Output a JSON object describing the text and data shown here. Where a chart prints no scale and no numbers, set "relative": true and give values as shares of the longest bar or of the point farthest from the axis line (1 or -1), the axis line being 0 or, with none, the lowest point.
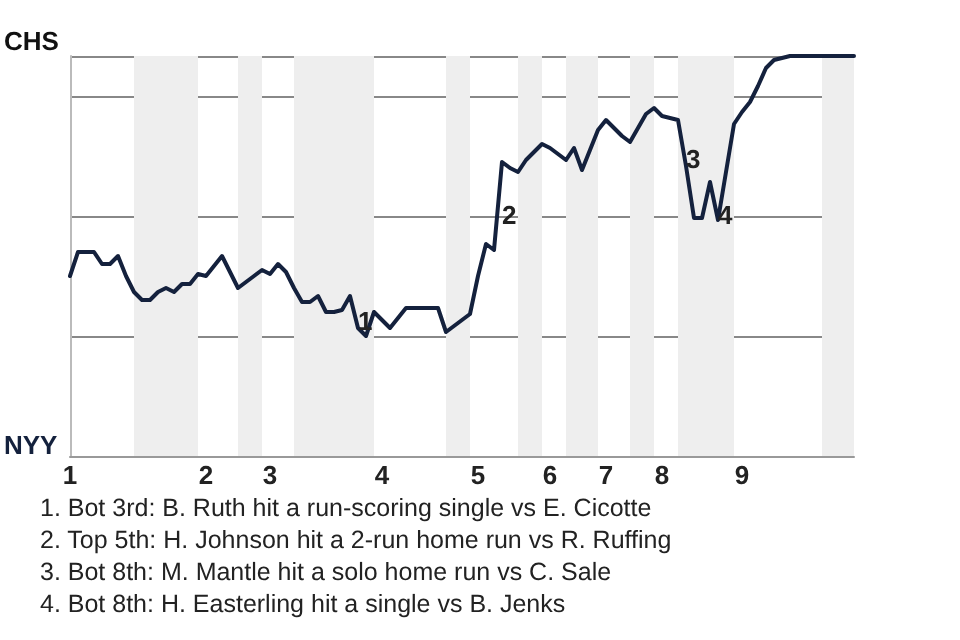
{
  "chart_data": {
    "type": "line",
    "relative": true,
    "categories": [
      "1",
      null,
      null,
      null,
      null,
      null,
      null,
      null,
      null,
      null,
      null,
      null,
      null,
      null,
      null,
      null,
      null,
      "2",
      null,
      null,
      null,
      null,
      null,
      null,
      null,
      "3",
      null,
      null,
      null,
      null,
      null,
      null,
      null,
      null,
      null,
      null,
      null,
      null,
      null,
      "4",
      null,
      null,
      null,
      null,
      null,
      null,
      null,
      null,
      null,
      null,
      null,
      "5",
      null,
      null,
      null,
      null,
      null,
      null,
      null,
      null,
      "6",
      null,
      null,
      null,
      null,
      null,
      null,
      "7",
      null,
      null,
      null,
      null,
      null,
      null,
      "8",
      null,
      null,
      null,
      null,
      null,
      null,
      null,
      null,
      null,
      "9",
      null,
      null,
      null,
      null,
      null,
      null,
      null,
      null,
      null,
      null,
      null,
      null,
      null,
      null
    ],
    "series": [
      {
        "color": "#14213d",
        "values": [
          0.45,
          0.51,
          0.51,
          0.51,
          0.48,
          0.48,
          0.5,
          0.45,
          0.41,
          0.39,
          0.39,
          0.41,
          0.42,
          0.41,
          0.43,
          0.43,
          0.455,
          0.45,
          0.475,
          0.5,
          0.46,
          0.42,
          0.435,
          0.45,
          0.465,
          0.455,
          0.48,
          0.46,
          0.42,
          0.385,
          0.385,
          0.4,
          0.36,
          0.36,
          0.365,
          0.4,
          0.32,
          0.3,
          0.36,
          0.34,
          0.32,
          0.345,
          0.37,
          0.37,
          0.37,
          0.37,
          0.37,
          0.31,
          0.325,
          0.34,
          0.355,
          0.45,
          0.53,
          0.515,
          0.735,
          0.72,
          0.71,
          0.74,
          0.76,
          0.78,
          0.77,
          0.755,
          0.74,
          0.77,
          0.715,
          0.765,
          0.815,
          0.84,
          0.82,
          0.8,
          0.785,
          0.82,
          0.855,
          0.87,
          0.85,
          0.845,
          0.84,
          0.725,
          0.595,
          0.595,
          0.685,
          0.59,
          0.71,
          0.83,
          0.86,
          0.885,
          0.925,
          0.97,
          0.99,
          0.995,
          1,
          1,
          1,
          1,
          1,
          1,
          1,
          1,
          1
        ]
      }
    ],
    "grid": "y",
    "annotations": [
      "CHS",
      "NYY",
      "1",
      "2",
      "3",
      "4",
      "1. Bot 3rd: B. Ruth hit a run-scoring single vs E. Cicotte",
      "2. Top 5th: H. Johnson hit a 2-run home run vs R. Ruffing",
      "3. Bot 8th: M. Mantle hit a solo home run vs C. Sale",
      "4. Bot 8th: H. Easterling hit a single vs B. Jenks"
    ]
  }
}
